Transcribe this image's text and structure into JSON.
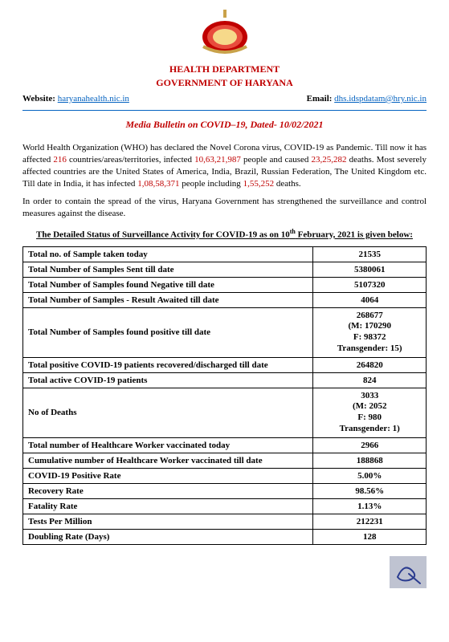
{
  "header": {
    "dept": "HEALTH DEPARTMENT",
    "govt": "GOVERNMENT OF HARYANA",
    "website_label": "Website:",
    "website_link": "haryanahealth.nic.in",
    "email_label": "Email:",
    "email_link": "dhs.idspdatam@hry.nic.in"
  },
  "bulletin": {
    "prefix": "Media Bulletin on COVID–19",
    "dated": ", Dated- 10/02/2021"
  },
  "para1": {
    "t1": "World Health Organization (WHO) has declared the Novel Corona virus, COVID-19 as Pandemic. Till now it has affected ",
    "n1": "216",
    "t2": " countries/areas/territories, infected ",
    "n2": "10,63,21,987",
    "t3": " people and caused ",
    "n3": "23,25,282",
    "t4": " deaths. Most severely affected countries are the United States of America, India, Brazil, Russian Federation, The United Kingdom etc. Till date in India, it has infected ",
    "n4": "1,08,58,371",
    "t5": " people including ",
    "n5": "1,55,252",
    "t6": " deaths."
  },
  "para2": "In order to contain the spread of the virus, Haryana Government has strengthened the surveillance and control measures against the disease.",
  "status_heading": {
    "pre": "The Detailed Status of Surveillance Activity for COVID-19 as on 10",
    "sup": "th",
    "post": " February, 2021 is given below:"
  },
  "rows": [
    {
      "label": "Total no. of Sample taken today",
      "value": "21535"
    },
    {
      "label": "Total Number of Samples Sent till date",
      "value": "5380061"
    },
    {
      "label": "Total Number of Samples found Negative till date",
      "value": "5107320"
    },
    {
      "label": "Total Number of Samples - Result Awaited till date",
      "value": "4064"
    },
    {
      "label": "Total Number of Samples found positive till date",
      "value": "268677\n(M: 170290\nF: 98372\nTransgender: 15)"
    },
    {
      "label": "Total positive COVID-19 patients recovered/discharged till date",
      "value": "264820"
    },
    {
      "label": "Total active COVID-19 patients",
      "value": "824"
    },
    {
      "label": "No of Deaths",
      "value": "3033\n(M: 2052\nF: 980\nTransgender: 1)"
    },
    {
      "label": "Total number of Healthcare Worker vaccinated today",
      "value": "2966"
    },
    {
      "label": "Cumulative number of Healthcare Worker vaccinated till date",
      "value": "188868"
    },
    {
      "label": "COVID-19 Positive Rate",
      "value": "5.00%"
    },
    {
      "label": "Recovery Rate",
      "value": "98.56%"
    },
    {
      "label": "Fatality Rate",
      "value": "1.13%"
    },
    {
      "label": "Tests Per Million",
      "value": "212231"
    },
    {
      "label": "Doubling Rate (Days)",
      "value": "128"
    }
  ],
  "colors": {
    "accent_red": "#c00000",
    "link_blue": "#0563c1",
    "signature_bg": "#bfc3d1",
    "signature_ink": "#2a3b8f"
  }
}
